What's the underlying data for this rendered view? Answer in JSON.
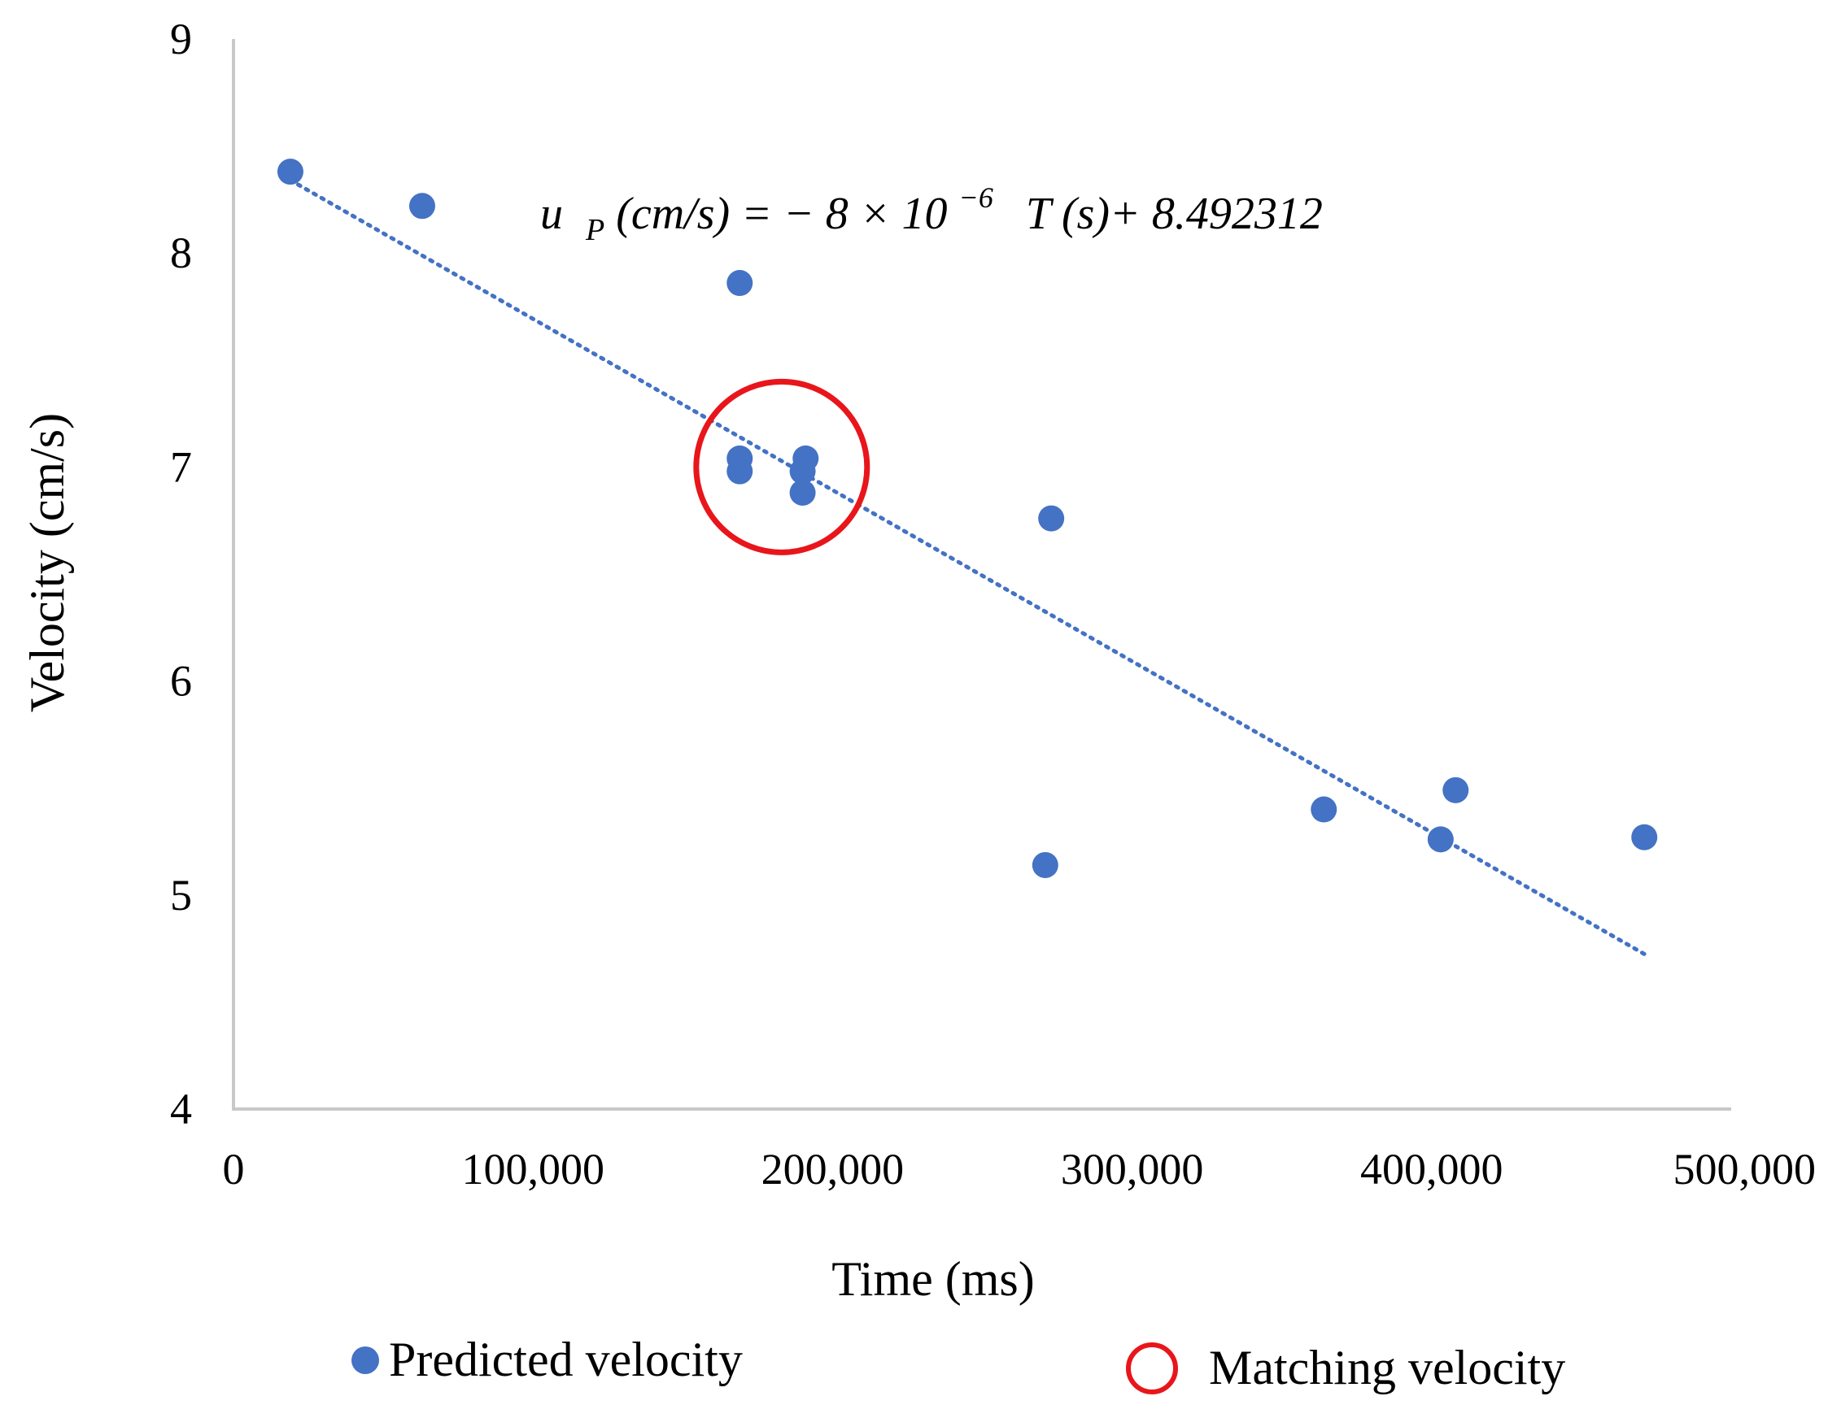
{
  "chart_data": {
    "type": "scatter",
    "xlabel": "Time (ms)",
    "ylabel": "Velocity (cm/s)",
    "xlim": [
      0,
      500000
    ],
    "ylim": [
      4,
      9
    ],
    "x_ticks": [
      0,
      100000,
      200000,
      300000,
      400000,
      500000
    ],
    "x_tick_labels": [
      "0",
      "100,000",
      "200,000",
      "300,000",
      "400,000",
      "500,000"
    ],
    "y_ticks": [
      4,
      5,
      6,
      7,
      8,
      9
    ],
    "y_tick_labels": [
      "4",
      "5",
      "6",
      "7",
      "8",
      "9"
    ],
    "grid": false,
    "series": [
      {
        "name": "Predicted velocity",
        "color": "#4472C4",
        "points": [
          {
            "x": 19000,
            "y": 8.38
          },
          {
            "x": 63000,
            "y": 8.22
          },
          {
            "x": 169000,
            "y": 7.86
          },
          {
            "x": 169000,
            "y": 7.04
          },
          {
            "x": 169000,
            "y": 6.98
          },
          {
            "x": 191000,
            "y": 7.04
          },
          {
            "x": 190000,
            "y": 6.98
          },
          {
            "x": 190000,
            "y": 6.88
          },
          {
            "x": 273000,
            "y": 6.76
          },
          {
            "x": 271000,
            "y": 5.14
          },
          {
            "x": 364000,
            "y": 5.4
          },
          {
            "x": 403000,
            "y": 5.26
          },
          {
            "x": 408000,
            "y": 5.49
          },
          {
            "x": 471000,
            "y": 5.27
          }
        ]
      }
    ],
    "trendline": {
      "style": "dotted",
      "color": "#4472C4",
      "x_range": [
        19000,
        471000
      ],
      "slope_per_ms": -8e-06,
      "intercept": 8.492312
    },
    "equation": {
      "u": "u",
      "sub": "P",
      "lhs_rest": " (cm/s) = − 8 × 10",
      "exp": "−6",
      "rhs": "T (s)+ 8.492312"
    },
    "highlight": {
      "name": "Matching velocity",
      "color": "#E8161B",
      "center": {
        "x": 183000,
        "y": 7.0
      }
    },
    "legend": {
      "placement": "bottom",
      "items": [
        "Predicted velocity",
        "Matching velocity"
      ]
    }
  }
}
